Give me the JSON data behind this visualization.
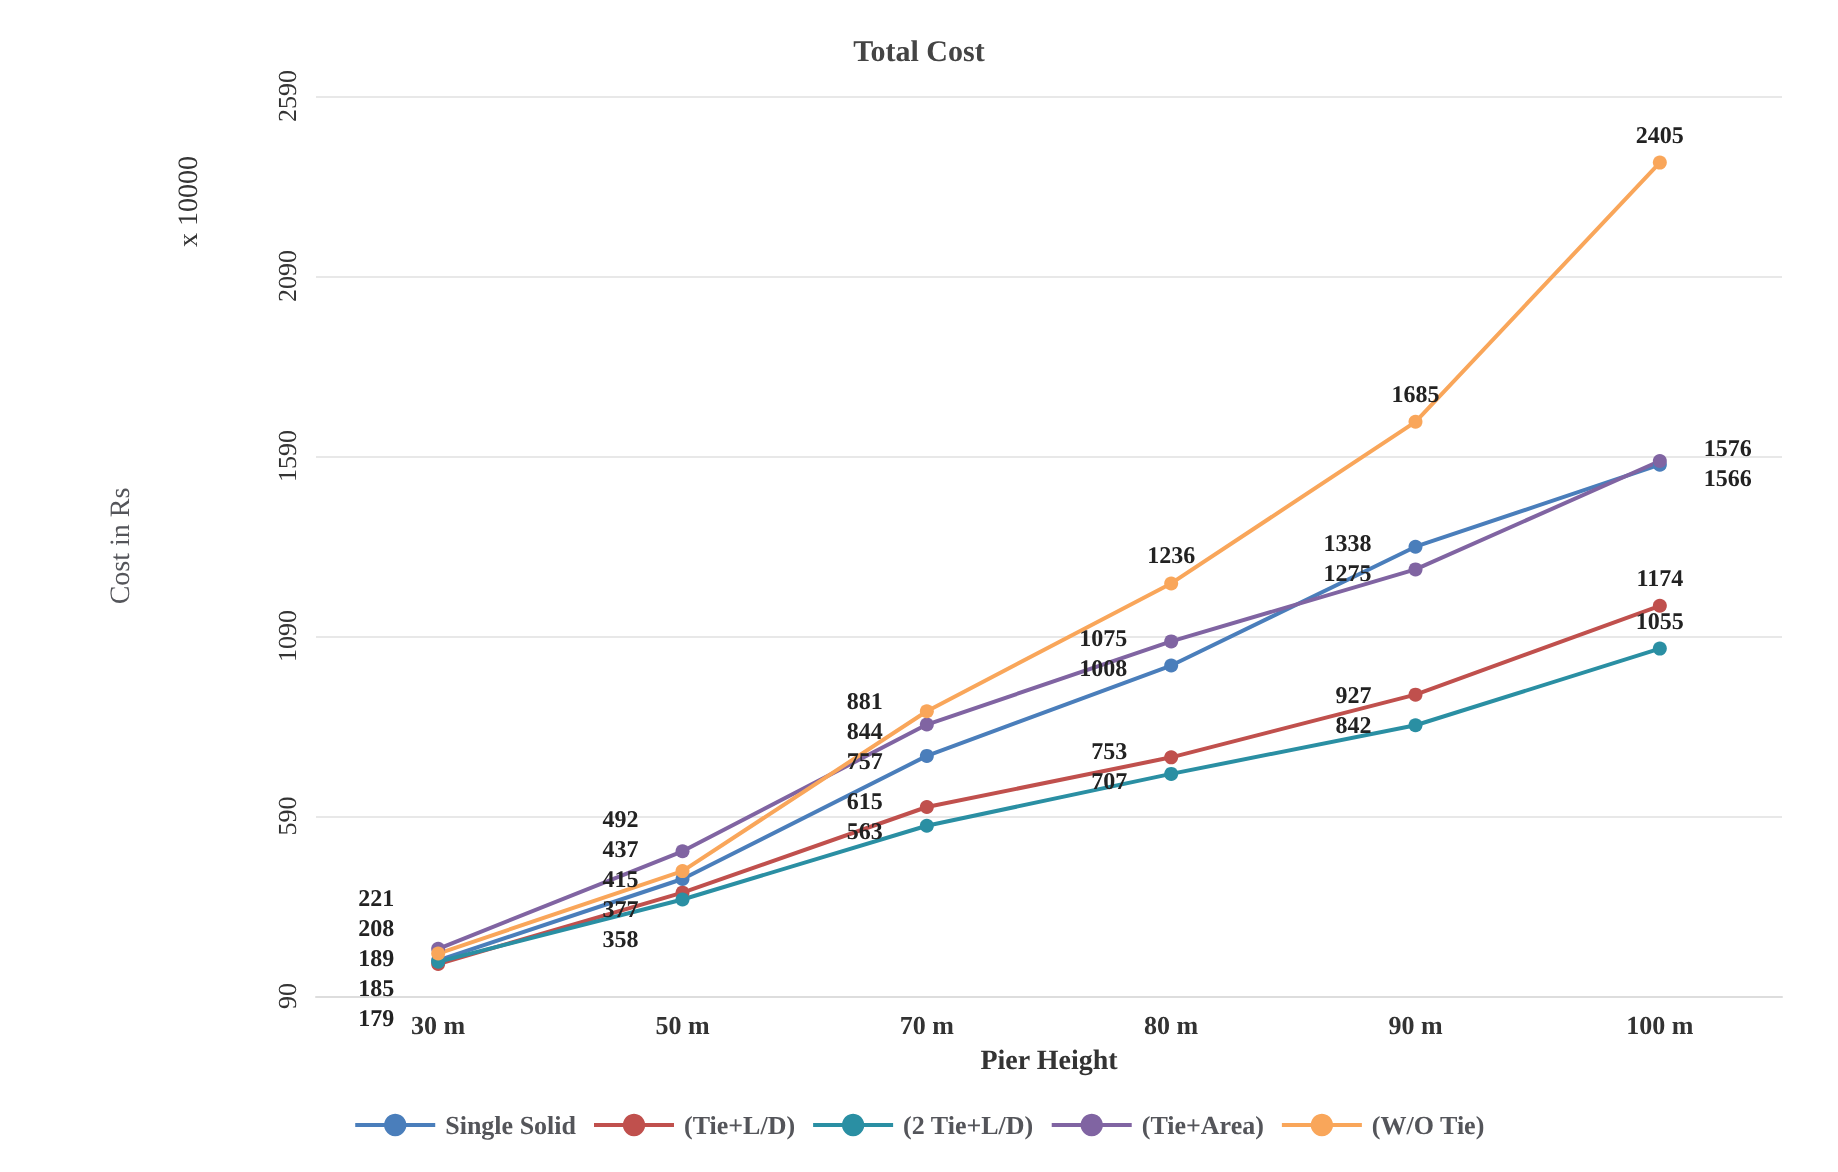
{
  "chart_data": {
    "type": "line",
    "title": "Total Cost",
    "xlabel": "Pier Height",
    "ylabel": "Cost in Rs",
    "annotations": [
      "x 10000"
    ],
    "categories": [
      "30 m",
      "50 m",
      "70 m",
      "80 m",
      "90 m",
      "100 m"
    ],
    "series": [
      {
        "name": "Single Solid",
        "color": "#4a7ebb",
        "values": [
          189,
          415,
          757,
          1008,
          1338,
          1566
        ]
      },
      {
        "name": "(Tie+L/D)",
        "color": "#c0504d",
        "values": [
          179,
          377,
          615,
          753,
          927,
          1174
        ]
      },
      {
        "name": "(2 Tie+L/D)",
        "color": "#2a8fa3",
        "values": [
          185,
          358,
          563,
          707,
          842,
          1055
        ]
      },
      {
        "name": "(Tie+Area)",
        "color": "#8064a2",
        "values": [
          221,
          492,
          844,
          1075,
          1275,
          1576
        ]
      },
      {
        "name": "(W/O Tie)",
        "color": "#f9a65a",
        "values": [
          208,
          437,
          881,
          1236,
          1685,
          2405
        ]
      }
    ],
    "ylim": [
      90,
      2590
    ],
    "yticks": [
      90,
      590,
      1090,
      1590,
      2090,
      2590
    ],
    "grid": "y",
    "legend": "bottom",
    "marker": "circle",
    "line_style": "solid",
    "data_labels": true
  }
}
